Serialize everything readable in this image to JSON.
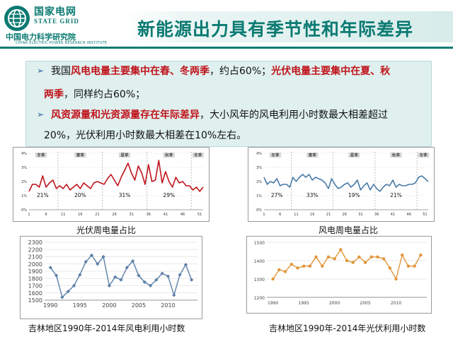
{
  "header": {
    "brand_cn": "国家电网",
    "brand_en": "STATE GRID",
    "institute_cn": "中国电力科学研究院",
    "institute_en": "CHINA ELECTRIC POWER RESEARCH INSTITUTE",
    "logo_icon": "state-grid-logo-icon",
    "title": "新能源出力具有季节性和年际差异",
    "accent_color": "#0b7a72",
    "highlight_color": "#c0141c"
  },
  "bullets": [
    {
      "t1": "我国",
      "r1": "风电电量主要集中在春、冬两季",
      "t2": "，约占60%；",
      "r2": "光伏电量主要集中在夏、秋",
      "line2_red": "两季",
      "line2_text": "，同样约占60%；"
    },
    {
      "r1": "风资源量和光资源量存在年际差异",
      "t1": "，大小风年的风电利用小时数最大相差超过",
      "line2_text": "20%，光伏利用小时数最大相差在10%左右。"
    }
  ],
  "chart_data": [
    {
      "id": "pv-weekly",
      "type": "line",
      "caption": "光伏周电量占比",
      "color": "#c0141c",
      "season_labels": [
        "冬季",
        "春季",
        "夏季",
        "秋季",
        "冬季"
      ],
      "season_percents": [
        "21%",
        "20%",
        "31%",
        "29%"
      ],
      "x_ticks": [
        "1",
        "6",
        "11",
        "16",
        "21",
        "26",
        "31",
        "36",
        "41",
        "46",
        "51"
      ],
      "y_ticks": [
        "0%",
        "1%",
        "2%",
        "3%",
        "4%"
      ],
      "ylim": [
        0,
        4
      ],
      "x": [
        1,
        2,
        3,
        4,
        5,
        6,
        7,
        8,
        9,
        10,
        11,
        12,
        13,
        14,
        15,
        16,
        17,
        18,
        19,
        20,
        21,
        22,
        23,
        24,
        25,
        26,
        27,
        28,
        29,
        30,
        31,
        32,
        33,
        34,
        35,
        36,
        37,
        38,
        39,
        40,
        41,
        42,
        43,
        44,
        45,
        46,
        47,
        48,
        49,
        50,
        51,
        52
      ],
      "values": [
        1.3,
        1.8,
        1.8,
        1.6,
        2.4,
        1.6,
        1.9,
        2.1,
        1.5,
        1.7,
        1.5,
        1.8,
        1.4,
        1.6,
        1.8,
        1.5,
        1.9,
        1.7,
        1.5,
        1.9,
        2.0,
        1.9,
        1.8,
        2.2,
        2.5,
        2.1,
        1.7,
        2.3,
        2.8,
        3.3,
        2.6,
        2.1,
        3.1,
        2.6,
        1.8,
        3.2,
        2.0,
        2.1,
        3.5,
        1.9,
        2.7,
        2.0,
        1.6,
        2.3,
        1.9,
        2.0,
        1.7,
        1.7,
        1.4,
        1.6,
        1.3,
        1.6
      ]
    },
    {
      "id": "wind-weekly",
      "type": "line",
      "caption": "风电周电量占比",
      "color": "#4a7ba7",
      "season_labels": [
        "冬季",
        "春季",
        "夏季",
        "秋季",
        "冬季"
      ],
      "season_percents": [
        "27%",
        "33%",
        "19%",
        "21%"
      ],
      "x_ticks": [
        "1",
        "6",
        "11",
        "16",
        "21",
        "26",
        "31",
        "36",
        "41",
        "46",
        "51"
      ],
      "y_ticks": [
        "0%",
        "1%",
        "2%",
        "3%",
        "4%"
      ],
      "ylim": [
        0,
        4
      ],
      "x": [
        1,
        2,
        3,
        4,
        5,
        6,
        7,
        8,
        9,
        10,
        11,
        12,
        13,
        14,
        15,
        16,
        17,
        18,
        19,
        20,
        21,
        22,
        23,
        24,
        25,
        26,
        27,
        28,
        29,
        30,
        31,
        32,
        33,
        34,
        35,
        36,
        37,
        38,
        39,
        40,
        41,
        42,
        43,
        44,
        45,
        46,
        47,
        48,
        49,
        50,
        51,
        52
      ],
      "values": [
        2.3,
        1.8,
        2.0,
        1.9,
        2.2,
        1.7,
        1.8,
        1.8,
        1.6,
        2.3,
        2.0,
        2.3,
        2.5,
        2.3,
        2.5,
        2.1,
        2.3,
        2.2,
        2.1,
        1.9,
        1.5,
        2.2,
        1.8,
        1.5,
        1.6,
        1.8,
        1.9,
        1.6,
        1.8,
        2.1,
        1.4,
        1.7,
        1.9,
        1.4,
        1.8,
        1.5,
        1.3,
        1.6,
        1.8,
        1.7,
        2.1,
        1.6,
        1.8,
        1.7,
        1.7,
        1.8,
        1.8,
        1.9,
        2.3,
        2.4,
        2.2,
        2.0
      ]
    },
    {
      "id": "wind-hours",
      "type": "line",
      "caption": "吉林地区1990年-2014年风电利用小时数",
      "color": "#5b7fa8",
      "x_ticks": [
        "1990",
        "1995",
        "2000",
        "2005",
        "2010"
      ],
      "y_ticks": [
        "1500",
        "1600",
        "1700",
        "1800",
        "1900",
        "2000",
        "2100",
        "2200",
        "2300"
      ],
      "ylim": [
        1500,
        2300
      ],
      "x": [
        1990,
        1991,
        1992,
        1993,
        1994,
        1995,
        1996,
        1997,
        1998,
        1999,
        2000,
        2001,
        2002,
        2003,
        2004,
        2005,
        2006,
        2007,
        2008,
        2009,
        2010,
        2011,
        2012,
        2013,
        2014
      ],
      "values": [
        1950,
        1840,
        1540,
        1620,
        1700,
        1850,
        2030,
        2120,
        2000,
        2100,
        1700,
        1820,
        1780,
        1950,
        2040,
        1840,
        1750,
        1700,
        1780,
        1870,
        1830,
        1570,
        1850,
        1990,
        1780
      ]
    },
    {
      "id": "pv-hours",
      "type": "line",
      "caption": "吉林地区1990年-2014年光伏利用小时数",
      "color": "#e0963c",
      "x_ticks": [
        "1990",
        "1995",
        "2000",
        "2005",
        "2010"
      ],
      "y_ticks": [
        "1200",
        "1300",
        "1400",
        "1500"
      ],
      "ylim": [
        1200,
        1500
      ],
      "x": [
        1990,
        1991,
        1992,
        1993,
        1994,
        1995,
        1996,
        1997,
        1998,
        1999,
        2000,
        2001,
        2002,
        2003,
        2004,
        2005,
        2006,
        2007,
        2008,
        2009,
        2010,
        2011,
        2012,
        2013,
        2014
      ],
      "values": [
        1300,
        1350,
        1340,
        1380,
        1360,
        1370,
        1370,
        1420,
        1370,
        1420,
        1410,
        1460,
        1400,
        1390,
        1420,
        1390,
        1420,
        1420,
        1410,
        1360,
        1300,
        1430,
        1370,
        1370,
        1430
      ]
    }
  ]
}
